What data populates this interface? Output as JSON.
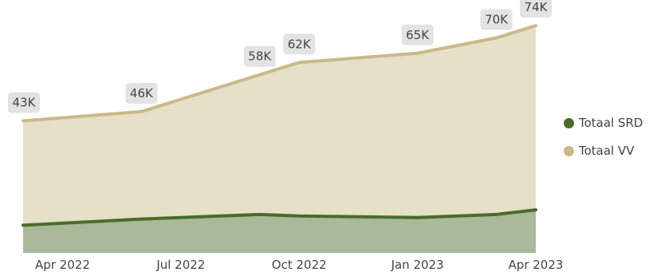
{
  "chart_data": {
    "type": "area",
    "x": [
      "2022-03",
      "2022-06",
      "2022-09",
      "2022-10",
      "2023-01",
      "2023-03",
      "2023-04"
    ],
    "x_ticks": [
      "Apr 2022",
      "Jul 2022",
      "Oct 2022",
      "Jan 2023",
      "Apr 2023"
    ],
    "series": [
      {
        "name": "Totaal SRD",
        "color": "#4a6b2a",
        "fill": "#a9b99a",
        "values": [
          9,
          11,
          12.5,
          12,
          11.5,
          12.5,
          14
        ]
      },
      {
        "name": "Totaal VV",
        "color": "#c9b98a",
        "fill": "#e6e0c8",
        "values": [
          43,
          46,
          58,
          62,
          65,
          70,
          74
        ],
        "data_labels": [
          "43K",
          "46K",
          "58K",
          "62K",
          "65K",
          "70K",
          "74K"
        ]
      }
    ],
    "ylim": [
      0,
      80
    ],
    "grid": false,
    "legend_position": "right",
    "title": "",
    "xlabel": "",
    "ylabel": ""
  }
}
